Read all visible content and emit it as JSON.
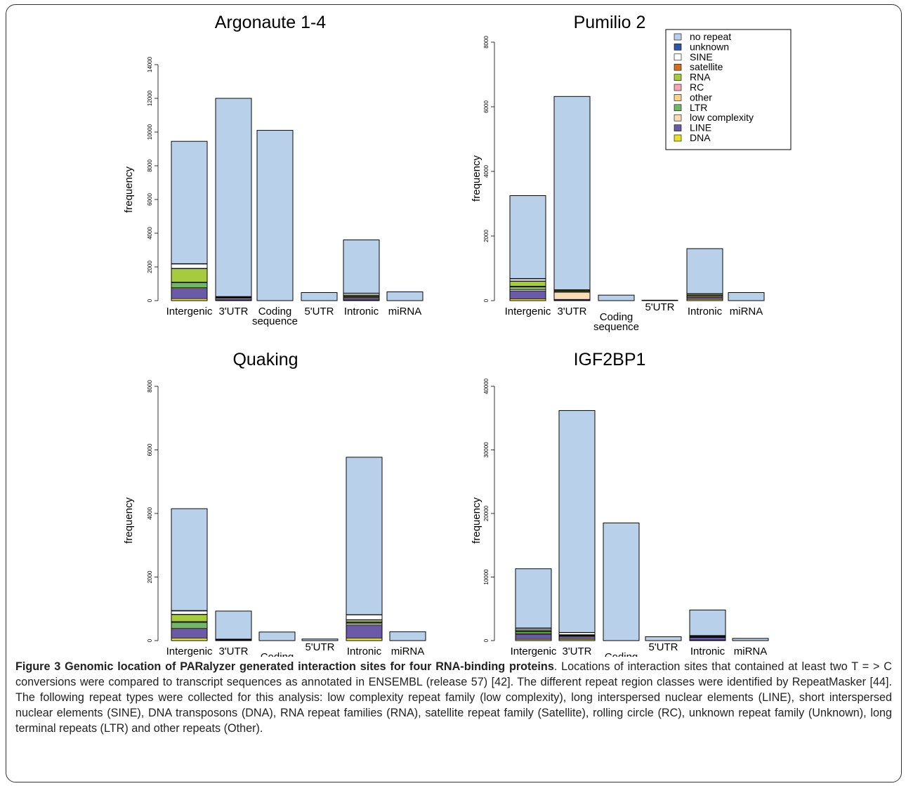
{
  "categories": [
    "Intergenic",
    "3'UTR",
    "Coding\nsequence",
    "5'UTR",
    "Intronic",
    "miRNA"
  ],
  "legend": {
    "items": [
      {
        "name": "no repeat",
        "color": "#b8d0ea"
      },
      {
        "name": "unknown",
        "color": "#3154a3"
      },
      {
        "name": "SINE",
        "color": "#ffffff"
      },
      {
        "name": "satellite",
        "color": "#d1701f"
      },
      {
        "name": "RNA",
        "color": "#a6cb3c"
      },
      {
        "name": "RC",
        "color": "#f4a6b3"
      },
      {
        "name": "other",
        "color": "#f7d38a"
      },
      {
        "name": "LTR",
        "color": "#70b866"
      },
      {
        "name": "low complexity",
        "color": "#f8dcb5"
      },
      {
        "name": "LINE",
        "color": "#6a5aa7"
      },
      {
        "name": "DNA",
        "color": "#e5e12a"
      }
    ]
  },
  "chart_data": [
    {
      "type": "bar",
      "stacked": true,
      "title": "Argonaute 1-4",
      "ylabel": "frequency",
      "ylim": [
        0,
        14000
      ],
      "yticks": [
        0,
        2000,
        4000,
        6000,
        8000,
        10000,
        12000,
        14000
      ],
      "categories": [
        "Intergenic",
        "3'UTR",
        "Coding sequence",
        "5'UTR",
        "Intronic",
        "miRNA"
      ],
      "series": [
        {
          "name": "DNA",
          "values": [
            120,
            20,
            0,
            0,
            40,
            0
          ]
        },
        {
          "name": "LINE",
          "values": [
            600,
            60,
            0,
            0,
            100,
            0
          ]
        },
        {
          "name": "low complexity",
          "values": [
            50,
            60,
            0,
            0,
            40,
            0
          ]
        },
        {
          "name": "LTR",
          "values": [
            300,
            30,
            0,
            0,
            60,
            0
          ]
        },
        {
          "name": "other",
          "values": [
            20,
            10,
            0,
            0,
            10,
            0
          ]
        },
        {
          "name": "RC",
          "values": [
            10,
            0,
            0,
            0,
            10,
            0
          ]
        },
        {
          "name": "RNA",
          "values": [
            800,
            30,
            0,
            0,
            70,
            0
          ]
        },
        {
          "name": "satellite",
          "values": [
            20,
            0,
            0,
            0,
            10,
            0
          ]
        },
        {
          "name": "SINE",
          "values": [
            250,
            30,
            0,
            0,
            100,
            0
          ]
        },
        {
          "name": "unknown",
          "values": [
            30,
            10,
            0,
            0,
            10,
            0
          ]
        },
        {
          "name": "no repeat",
          "values": [
            7250,
            11750,
            10100,
            480,
            3150,
            520
          ]
        }
      ]
    },
    {
      "type": "bar",
      "stacked": true,
      "title": "Pumilio 2",
      "ylabel": "frequency",
      "ylim": [
        0,
        8000
      ],
      "yticks": [
        0,
        2000,
        4000,
        6000,
        8000
      ],
      "categories": [
        "Intergenic",
        "3'UTR",
        "Coding sequence",
        "5'UTR",
        "Intronic",
        "miRNA"
      ],
      "series": [
        {
          "name": "DNA",
          "values": [
            50,
            20,
            0,
            0,
            40,
            0
          ]
        },
        {
          "name": "LINE",
          "values": [
            250,
            20,
            0,
            0,
            60,
            0
          ]
        },
        {
          "name": "low complexity",
          "values": [
            40,
            220,
            0,
            0,
            30,
            0
          ]
        },
        {
          "name": "LTR",
          "values": [
            80,
            20,
            0,
            0,
            20,
            0
          ]
        },
        {
          "name": "other",
          "values": [
            20,
            10,
            0,
            0,
            10,
            0
          ]
        },
        {
          "name": "RC",
          "values": [
            10,
            0,
            0,
            0,
            0,
            0
          ]
        },
        {
          "name": "RNA",
          "values": [
            150,
            20,
            0,
            0,
            20,
            0
          ]
        },
        {
          "name": "satellite",
          "values": [
            10,
            0,
            0,
            0,
            0,
            0
          ]
        },
        {
          "name": "SINE",
          "values": [
            60,
            20,
            0,
            0,
            30,
            0
          ]
        },
        {
          "name": "unknown",
          "values": [
            20,
            10,
            0,
            0,
            10,
            0
          ]
        },
        {
          "name": "no repeat",
          "values": [
            2560,
            5980,
            170,
            15,
            1390,
            250
          ]
        }
      ]
    },
    {
      "type": "bar",
      "stacked": true,
      "title": "Quaking",
      "ylabel": "frequency",
      "ylim": [
        0,
        8000
      ],
      "yticks": [
        0,
        2000,
        4000,
        6000,
        8000
      ],
      "categories": [
        "Intergenic",
        "3'UTR",
        "Coding sequence",
        "5'UTR",
        "Intronic",
        "miRNA"
      ],
      "series": [
        {
          "name": "DNA",
          "values": [
            80,
            0,
            0,
            0,
            80,
            0
          ]
        },
        {
          "name": "LINE",
          "values": [
            280,
            20,
            0,
            0,
            400,
            0
          ]
        },
        {
          "name": "low complexity",
          "values": [
            30,
            10,
            0,
            0,
            40,
            0
          ]
        },
        {
          "name": "LTR",
          "values": [
            180,
            0,
            0,
            0,
            40,
            0
          ]
        },
        {
          "name": "other",
          "values": [
            20,
            0,
            0,
            0,
            20,
            0
          ]
        },
        {
          "name": "RC",
          "values": [
            10,
            0,
            0,
            0,
            10,
            0
          ]
        },
        {
          "name": "RNA",
          "values": [
            220,
            0,
            0,
            0,
            60,
            0
          ]
        },
        {
          "name": "satellite",
          "values": [
            10,
            0,
            0,
            0,
            10,
            0
          ]
        },
        {
          "name": "SINE",
          "values": [
            100,
            10,
            0,
            0,
            150,
            0
          ]
        },
        {
          "name": "unknown",
          "values": [
            20,
            10,
            0,
            0,
            10,
            0
          ]
        },
        {
          "name": "no repeat",
          "values": [
            3200,
            880,
            270,
            50,
            4950,
            280
          ]
        }
      ]
    },
    {
      "type": "bar",
      "stacked": true,
      "title": "IGF2BP1",
      "ylabel": "frequency",
      "ylim": [
        0,
        40000
      ],
      "yticks": [
        0,
        10000,
        20000,
        30000,
        40000
      ],
      "categories": [
        "Intergenic",
        "3'UTR",
        "Coding sequence",
        "5'UTR",
        "Intronic",
        "miRNA"
      ],
      "series": [
        {
          "name": "DNA",
          "values": [
            200,
            200,
            0,
            0,
            100,
            0
          ]
        },
        {
          "name": "LINE",
          "values": [
            800,
            400,
            0,
            0,
            400,
            0
          ]
        },
        {
          "name": "low complexity",
          "values": [
            100,
            100,
            0,
            0,
            50,
            0
          ]
        },
        {
          "name": "LTR",
          "values": [
            300,
            100,
            0,
            0,
            50,
            0
          ]
        },
        {
          "name": "other",
          "values": [
            50,
            50,
            0,
            0,
            20,
            0
          ]
        },
        {
          "name": "RC",
          "values": [
            20,
            0,
            0,
            0,
            0,
            0
          ]
        },
        {
          "name": "RNA",
          "values": [
            200,
            100,
            0,
            0,
            50,
            0
          ]
        },
        {
          "name": "satellite",
          "values": [
            30,
            0,
            0,
            0,
            0,
            0
          ]
        },
        {
          "name": "SINE",
          "values": [
            200,
            300,
            0,
            0,
            100,
            0
          ]
        },
        {
          "name": "unknown",
          "values": [
            100,
            50,
            0,
            0,
            50,
            0
          ]
        },
        {
          "name": "no repeat",
          "values": [
            9300,
            34900,
            18500,
            600,
            4000,
            350
          ]
        }
      ]
    }
  ],
  "caption": {
    "heading": "Figure 3 Genomic location of PARalyzer generated interaction sites for four RNA-binding proteins",
    "body": ". Locations of interaction sites that contained at least two T = > C conversions were compared to transcript sequences as annotated in ENSEMBL (release 57) [42]. The different repeat region classes were identified by RepeatMasker [44]. The following repeat types were collected for this analysis: low complexity repeat family (low complexity), long interspersed nuclear elements (LINE), short interspersed nuclear elements (SINE), DNA transposons (DNA), RNA repeat families (RNA), satellite repeat family (Satellite), rolling circle (RC), unknown repeat family (Unknown), long terminal repeats (LTR) and other repeats (Other)."
  }
}
